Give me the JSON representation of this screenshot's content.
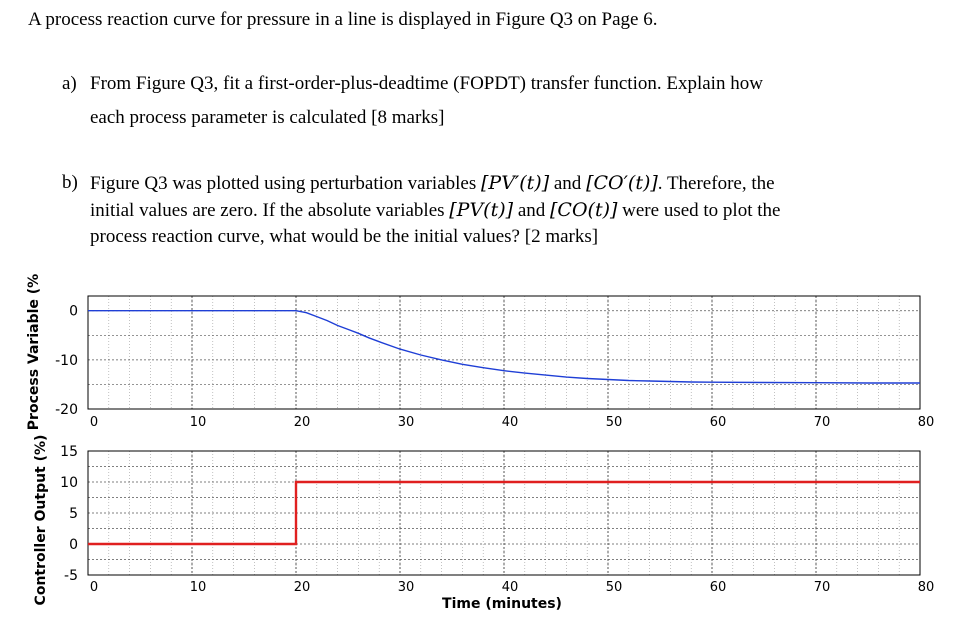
{
  "text": {
    "intro": "A process reaction curve for pressure in a line is displayed in Figure Q3 on Page 6.",
    "qa_letter": "a)",
    "qa_line1": "From Figure Q3, fit a first-order-plus-deadtime (FOPDT) transfer function. Explain how",
    "qa_line2": "each process parameter is calculated [8 marks]",
    "qb_letter": "b)",
    "qb_line1_a": "Figure Q3 was plotted using perturbation variables ",
    "qb_line1_pv": "[PV′(t)]",
    "qb_line1_and": " and ",
    "qb_line1_co": "[CO′(t)]",
    "qb_line1_b": ". Therefore, the",
    "qb_line2_a": "initial values are zero. If the absolute variables ",
    "qb_line2_pv": "[PV(t)]",
    "qb_line2_and": " and ",
    "qb_line2_co": "[CO(t)]",
    "qb_line2_b": " were used to plot the",
    "qb_line3": "process reaction curve, what would be the initial values? [2 marks]"
  },
  "chart_data": [
    {
      "type": "line",
      "ylabel": "Process Variable (%",
      "xlim": [
        0,
        80
      ],
      "ylim": [
        -20,
        3
      ],
      "x_ticks": [
        "0",
        "10",
        "20",
        "30",
        "40",
        "50",
        "60",
        "70",
        "80"
      ],
      "y_ticks": [
        "0",
        "-10",
        "-20"
      ],
      "series": [
        {
          "color": "#1f3fd6",
          "x": [
            0,
            20,
            21,
            22,
            23,
            24,
            25,
            26,
            27,
            28,
            30,
            32,
            34,
            36,
            38,
            40,
            42,
            44,
            46,
            48,
            50,
            52,
            54,
            56,
            58,
            60,
            65,
            70,
            75,
            80
          ],
          "y": [
            0,
            0,
            -0.4,
            -1.2,
            -2.0,
            -3.0,
            -3.8,
            -4.6,
            -5.5,
            -6.3,
            -7.8,
            -9.0,
            -10.0,
            -10.9,
            -11.6,
            -12.2,
            -12.7,
            -13.1,
            -13.5,
            -13.8,
            -14.0,
            -14.2,
            -14.3,
            -14.4,
            -14.5,
            -14.55,
            -14.6,
            -14.65,
            -14.7,
            -14.7
          ]
        }
      ]
    },
    {
      "type": "line",
      "ylabel": "Controller Output (%)",
      "xlabel": "Time (minutes)",
      "xlim": [
        0,
        80
      ],
      "ylim": [
        -5,
        15
      ],
      "x_ticks": [
        "0",
        "10",
        "20",
        "30",
        "40",
        "50",
        "60",
        "70",
        "80"
      ],
      "y_ticks": [
        "15",
        "10",
        "5",
        "0",
        "-5"
      ],
      "series": [
        {
          "color": "#e02020",
          "x": [
            0,
            20,
            20,
            80
          ],
          "y": [
            0,
            0,
            10,
            10
          ]
        }
      ]
    }
  ]
}
